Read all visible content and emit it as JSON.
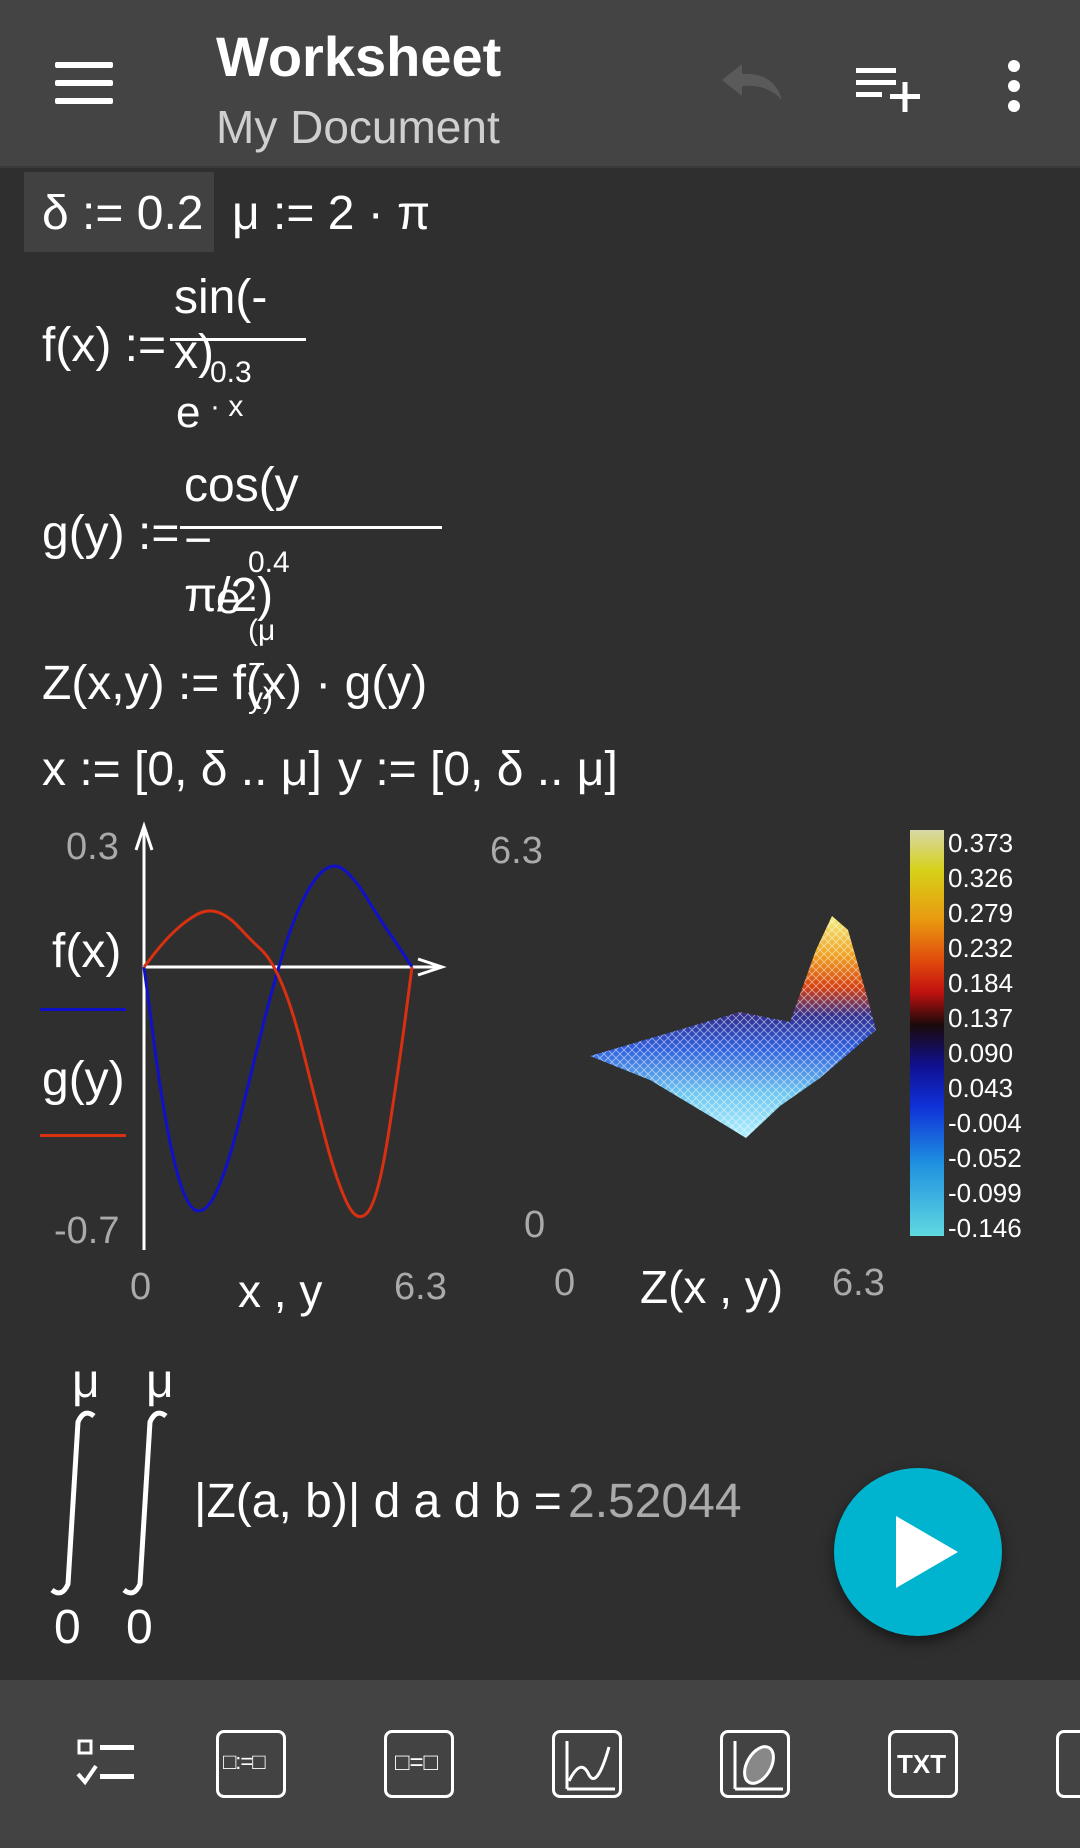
{
  "appbar": {
    "title": "Worksheet",
    "subtitle": "My Document",
    "icons": [
      "menu-icon",
      "undo-icon",
      "add-list-icon",
      "more-vert-icon"
    ]
  },
  "worksheet": {
    "delta_def": "δ := 0.2",
    "mu_def": "μ := 2 · π",
    "f_lhs": "f(x) :=",
    "f_num": "sin(-x)",
    "f_den": "e",
    "f_exp": "0.3 · x",
    "g_lhs": "g(y) :=",
    "g_num": "cos(y − π/2)",
    "g_den": "e",
    "g_exp": "0.4 · (μ − y)",
    "z_def": "Z(x,y) := f(x) · g(y)",
    "x_range": "x := [0, δ .. μ]",
    "y_range": "y := [0, δ .. μ]",
    "integral": {
      "upper1": "μ",
      "upper2": "μ",
      "lower1": "0",
      "lower2": "0",
      "integrand": "|Z(a, b)| d a d b =",
      "result": "2.52044"
    }
  },
  "plot2d": {
    "y_max": "0.3",
    "y_min": "-0.7",
    "x_min": "0",
    "x_max": "6.3",
    "x_label": "x , y",
    "legend": [
      {
        "label": "f(x)",
        "color": "#1010c8"
      },
      {
        "label": "g(y)",
        "color": "#d83010"
      }
    ]
  },
  "plot3d": {
    "y_max": "6.3",
    "y_min": "0",
    "x_min": "0",
    "x_max": "6.3",
    "x_label": "Z(x , y)",
    "colorbar_labels": [
      "0.373",
      "0.326",
      "0.279",
      "0.232",
      "0.184",
      "0.137",
      "0.090",
      "0.043",
      "-0.004",
      "-0.052",
      "-0.099",
      "-0.146"
    ]
  },
  "chart_data": {
    "type": "line",
    "x": [
      0,
      0.5,
      1.0,
      1.5,
      2.0,
      2.5,
      3.0,
      3.5,
      4.0,
      4.5,
      5.0,
      5.5,
      6.0,
      6.3
    ],
    "series": [
      {
        "name": "f(x)",
        "values": [
          0,
          -0.41,
          -0.62,
          -0.63,
          -0.5,
          -0.28,
          -0.06,
          0.12,
          0.23,
          0.27,
          0.22,
          0.13,
          0.05,
          0.0
        ]
      },
      {
        "name": "g(y)",
        "values": [
          0,
          0.07,
          0.12,
          0.15,
          0.13,
          0.07,
          0.02,
          -0.11,
          -0.33,
          -0.54,
          -0.66,
          -0.6,
          -0.25,
          0.0
        ]
      }
    ],
    "xlim": [
      0,
      6.3
    ],
    "ylim": [
      -0.7,
      0.3
    ],
    "xlabel": "x , y"
  },
  "fab": {
    "icon": "play-icon"
  },
  "toolbar": {
    "items": [
      {
        "name": "checklist-tool",
        "label": ""
      },
      {
        "name": "define-tool",
        "label": "□:=□"
      },
      {
        "name": "equation-tool",
        "label": "□=□"
      },
      {
        "name": "plot2d-tool",
        "label": ""
      },
      {
        "name": "plot3d-tool",
        "label": ""
      },
      {
        "name": "text-tool",
        "label": "TXT"
      }
    ]
  }
}
